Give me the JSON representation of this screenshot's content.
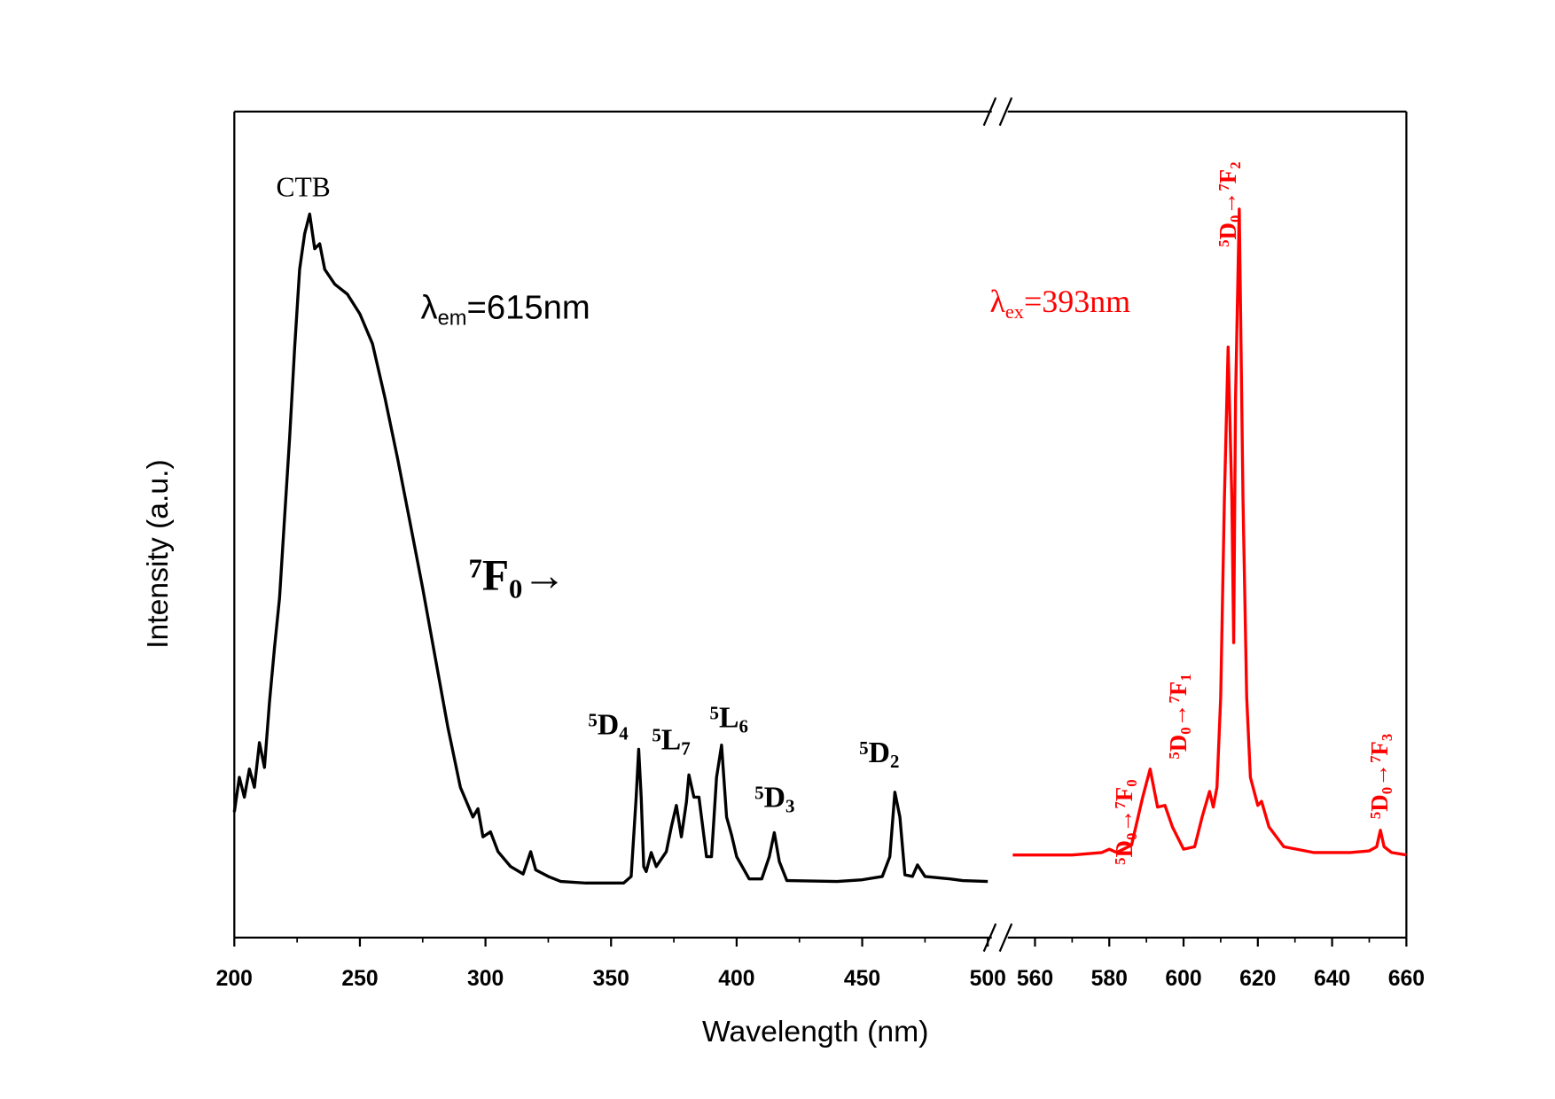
{
  "chart_data": [
    {
      "type": "line",
      "x_label": "Wavelength (nm)",
      "y_label": "Intensity (a.u.)",
      "xlim": [
        200,
        500
      ],
      "xticks": [
        200,
        250,
        300,
        350,
        400,
        450,
        500
      ],
      "xminorticks": [
        225,
        275,
        325,
        375,
        425,
        475
      ],
      "ylim": [
        0,
        100
      ],
      "color": "#000000",
      "x": [
        200,
        202,
        204,
        206,
        208,
        210,
        212,
        214,
        216,
        218,
        220,
        222,
        224,
        226,
        228,
        230,
        232,
        234,
        236,
        240,
        245,
        250,
        255,
        260,
        265,
        270,
        275,
        280,
        285,
        290,
        295,
        297,
        299,
        302,
        305,
        310,
        315,
        318,
        320,
        325,
        330,
        340,
        355,
        358,
        360,
        361,
        362,
        363,
        364,
        366,
        368,
        372,
        374,
        376,
        378,
        380,
        381,
        383,
        385,
        388,
        390,
        392,
        394,
        396,
        398,
        400,
        405,
        410,
        413,
        415,
        417,
        420,
        440,
        450,
        458,
        461,
        463,
        465,
        467,
        470,
        472,
        475,
        485,
        490,
        500
      ],
      "values": [
        15.2,
        19.4,
        17,
        20.4,
        18.2,
        23.6,
        20.6,
        28.5,
        35.1,
        41.1,
        50.8,
        60.4,
        71.3,
        80.9,
        85.2,
        87.6,
        83.4,
        84,
        80.9,
        79.1,
        77.9,
        75.5,
        71.9,
        65.3,
        58,
        50.2,
        42.3,
        33.9,
        25.5,
        18.2,
        14.6,
        15.6,
        12.2,
        12.8,
        10.4,
        8.6,
        7.7,
        10.4,
        8.2,
        7.4,
        6.8,
        6.6,
        6.6,
        7.4,
        17,
        22.8,
        17,
        8.6,
        8,
        10.3,
        8.6,
        10.4,
        13.4,
        16,
        12.2,
        16.4,
        19.7,
        17,
        17,
        9.8,
        9.8,
        19.4,
        23.3,
        14.6,
        12.4,
        9.8,
        7.1,
        7.1,
        9.8,
        12.7,
        9.2,
        6.9,
        6.8,
        7,
        7.4,
        9.8,
        17.6,
        14.6,
        7.6,
        7.4,
        8.8,
        7.4,
        7.1,
        6.9,
        6.8
      ],
      "annotations": [
        {
          "parts": [
            {
              "text": "CTB"
            }
          ]
        },
        {
          "parts": [
            {
              "text": "λ"
            },
            {
              "text": "em",
              "shift": "sub"
            },
            {
              "text": "=615nm"
            }
          ]
        },
        {
          "parts": [
            {
              "text": "7",
              "shift": "super"
            },
            {
              "text": "F"
            },
            {
              "text": "0",
              "shift": "sub"
            },
            {
              "text": "→"
            }
          ]
        },
        {
          "parts": [
            {
              "text": "5",
              "shift": "super"
            },
            {
              "text": "D"
            },
            {
              "text": "4",
              "shift": "sub"
            }
          ]
        },
        {
          "parts": [
            {
              "text": "5",
              "shift": "super"
            },
            {
              "text": "L"
            },
            {
              "text": "7",
              "shift": "sub"
            }
          ]
        },
        {
          "parts": [
            {
              "text": "5",
              "shift": "super"
            },
            {
              "text": "L"
            },
            {
              "text": "6",
              "shift": "sub"
            }
          ]
        },
        {
          "parts": [
            {
              "text": "5",
              "shift": "super"
            },
            {
              "text": "D"
            },
            {
              "text": "3",
              "shift": "sub"
            }
          ]
        },
        {
          "parts": [
            {
              "text": "5",
              "shift": "super"
            },
            {
              "text": "D"
            },
            {
              "text": "2",
              "shift": "sub"
            }
          ]
        }
      ]
    },
    {
      "type": "line",
      "xlim": [
        554,
        660
      ],
      "xticks": [
        560,
        580,
        600,
        620,
        640,
        660
      ],
      "xminorticks": [
        570,
        590,
        610,
        630,
        650
      ],
      "ylim": [
        0,
        100
      ],
      "color": "#ff0000",
      "x": [
        554,
        570,
        578,
        580,
        582,
        586,
        589,
        591,
        593,
        595,
        597,
        600,
        603,
        605,
        607,
        608,
        609,
        610,
        611,
        612,
        613,
        613.5,
        614,
        615,
        616,
        617,
        618,
        620,
        621,
        623,
        627,
        635,
        645,
        650,
        652,
        653,
        654,
        656,
        660
      ],
      "values": [
        10,
        10,
        10.3,
        10.7,
        10.3,
        11.2,
        17,
        20.4,
        15.8,
        16,
        13.4,
        10.7,
        11,
        14.6,
        17.7,
        15.8,
        18.2,
        29.1,
        53.2,
        71.5,
        53.2,
        35.7,
        65.3,
        88.2,
        53.2,
        29.1,
        19.4,
        16,
        16.5,
        13.4,
        11,
        10.3,
        10.3,
        10.5,
        11,
        13,
        11,
        10.3,
        10
      ],
      "annotations": [
        {
          "parts": [
            {
              "text": "λ"
            },
            {
              "text": "ex",
              "shift": "sub"
            },
            {
              "text": "=393nm"
            }
          ]
        },
        {
          "parts": [
            {
              "text": "5",
              "shift": "super"
            },
            {
              "text": "D"
            },
            {
              "text": "0",
              "shift": "sub"
            },
            {
              "text": "→"
            },
            {
              "text": "7",
              "shift": "super"
            },
            {
              "text": "F"
            },
            {
              "text": "0",
              "shift": "sub"
            }
          ]
        },
        {
          "parts": [
            {
              "text": "5",
              "shift": "super"
            },
            {
              "text": "D"
            },
            {
              "text": "0",
              "shift": "sub"
            },
            {
              "text": "→"
            },
            {
              "text": "7",
              "shift": "super"
            },
            {
              "text": "F"
            },
            {
              "text": "1",
              "shift": "sub"
            }
          ]
        },
        {
          "parts": [
            {
              "text": "5",
              "shift": "super"
            },
            {
              "text": "D"
            },
            {
              "text": "0",
              "shift": "sub"
            },
            {
              "text": "→"
            },
            {
              "text": "7",
              "shift": "super"
            },
            {
              "text": "F"
            },
            {
              "text": "2",
              "shift": "sub"
            }
          ]
        },
        {
          "parts": [
            {
              "text": "5",
              "shift": "super"
            },
            {
              "text": "D"
            },
            {
              "text": "0",
              "shift": "sub"
            },
            {
              "text": "→"
            },
            {
              "text": "7",
              "shift": "super"
            },
            {
              "text": "F"
            },
            {
              "text": "3",
              "shift": "sub"
            }
          ]
        }
      ]
    }
  ]
}
